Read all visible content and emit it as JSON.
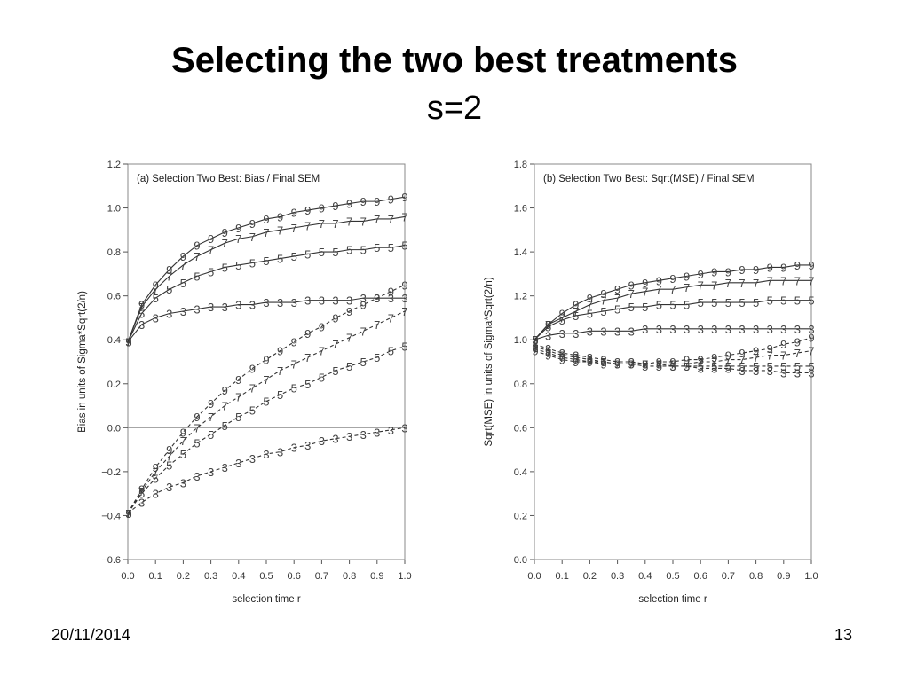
{
  "slide": {
    "title": "Selecting the two best treatments",
    "subtitle": "s=2",
    "date": "20/11/2014",
    "page_number": "13"
  },
  "chart_data": [
    {
      "type": "line",
      "title": "(a)  Selection  Two  Best:  Bias  /  Final  SEM",
      "xlabel": "selection  time  r",
      "ylabel": "Bias  in  units  of  Sigma*Sqrt(2/n)",
      "xlim": [
        0.0,
        1.0
      ],
      "ylim": [
        -0.6,
        1.2
      ],
      "xticks": [
        "0.0",
        "0.1",
        "0.2",
        "0.3",
        "0.4",
        "0.5",
        "0.6",
        "0.7",
        "0.8",
        "0.9",
        "1.0"
      ],
      "yticks": [
        "−0.6",
        "−0.4",
        "−0.2",
        "0.0",
        "0.2",
        "0.4",
        "0.6",
        "0.8",
        "1.0",
        "1.2"
      ],
      "ytick_values": [
        -0.6,
        -0.4,
        -0.2,
        0.0,
        0.2,
        0.4,
        0.6,
        0.8,
        1.0,
        1.2
      ],
      "reference_line_y": 0.0,
      "x": [
        0.0,
        0.05,
        0.1,
        0.15,
        0.2,
        0.25,
        0.3,
        0.35,
        0.4,
        0.45,
        0.5,
        0.55,
        0.6,
        0.65,
        0.7,
        0.75,
        0.8,
        0.85,
        0.9,
        0.95,
        1.0
      ],
      "series": [
        {
          "name": "9",
          "dash": false,
          "values": [
            0.39,
            0.56,
            0.65,
            0.72,
            0.78,
            0.83,
            0.86,
            0.89,
            0.91,
            0.93,
            0.95,
            0.96,
            0.98,
            0.99,
            1.0,
            1.01,
            1.02,
            1.03,
            1.03,
            1.04,
            1.05
          ]
        },
        {
          "name": "7",
          "dash": false,
          "values": [
            0.39,
            0.55,
            0.63,
            0.69,
            0.74,
            0.78,
            0.81,
            0.84,
            0.86,
            0.87,
            0.89,
            0.9,
            0.91,
            0.92,
            0.93,
            0.93,
            0.94,
            0.94,
            0.95,
            0.95,
            0.96
          ]
        },
        {
          "name": "5",
          "dash": false,
          "values": [
            0.39,
            0.52,
            0.59,
            0.63,
            0.66,
            0.69,
            0.71,
            0.73,
            0.74,
            0.75,
            0.76,
            0.77,
            0.78,
            0.79,
            0.8,
            0.8,
            0.81,
            0.81,
            0.82,
            0.82,
            0.83
          ]
        },
        {
          "name": "3",
          "dash": false,
          "values": [
            0.39,
            0.47,
            0.5,
            0.52,
            0.53,
            0.54,
            0.55,
            0.55,
            0.56,
            0.56,
            0.57,
            0.57,
            0.57,
            0.58,
            0.58,
            0.58,
            0.58,
            0.59,
            0.59,
            0.59,
            0.59
          ]
        },
        {
          "name": "9",
          "dash": true,
          "values": [
            -0.39,
            -0.28,
            -0.18,
            -0.1,
            -0.02,
            0.05,
            0.11,
            0.17,
            0.22,
            0.27,
            0.31,
            0.35,
            0.39,
            0.43,
            0.46,
            0.5,
            0.53,
            0.56,
            0.59,
            0.62,
            0.65
          ]
        },
        {
          "name": "7",
          "dash": true,
          "values": [
            -0.39,
            -0.29,
            -0.2,
            -0.13,
            -0.06,
            0.0,
            0.05,
            0.1,
            0.14,
            0.18,
            0.22,
            0.26,
            0.29,
            0.32,
            0.35,
            0.38,
            0.41,
            0.44,
            0.47,
            0.5,
            0.53
          ]
        },
        {
          "name": "5",
          "dash": true,
          "values": [
            -0.39,
            -0.3,
            -0.23,
            -0.17,
            -0.12,
            -0.07,
            -0.03,
            0.01,
            0.05,
            0.08,
            0.12,
            0.15,
            0.18,
            0.2,
            0.23,
            0.26,
            0.28,
            0.3,
            0.32,
            0.35,
            0.37
          ]
        },
        {
          "name": "3",
          "dash": true,
          "values": [
            -0.39,
            -0.34,
            -0.3,
            -0.27,
            -0.25,
            -0.22,
            -0.2,
            -0.18,
            -0.16,
            -0.14,
            -0.12,
            -0.11,
            -0.09,
            -0.08,
            -0.06,
            -0.05,
            -0.04,
            -0.03,
            -0.02,
            -0.01,
            0.0
          ]
        }
      ]
    },
    {
      "type": "line",
      "title": "(b)  Selection  Two  Best:  Sqrt(MSE)  /  Final  SEM",
      "xlabel": "selection  time  r",
      "ylabel": "Sqrt(MSE)  in  units  of  Sigma*Sqrt(2/n)",
      "xlim": [
        0.0,
        1.0
      ],
      "ylim": [
        0.0,
        1.8
      ],
      "xticks": [
        "0.0",
        "0.1",
        "0.2",
        "0.3",
        "0.4",
        "0.5",
        "0.6",
        "0.7",
        "0.8",
        "0.9",
        "1.0"
      ],
      "yticks": [
        "0.0",
        "0.2",
        "0.4",
        "0.6",
        "0.8",
        "1.0",
        "1.2",
        "1.4",
        "1.6",
        "1.8"
      ],
      "ytick_values": [
        0.0,
        0.2,
        0.4,
        0.6,
        0.8,
        1.0,
        1.2,
        1.4,
        1.6,
        1.8
      ],
      "x": [
        0.0,
        0.05,
        0.1,
        0.15,
        0.2,
        0.25,
        0.3,
        0.35,
        0.4,
        0.45,
        0.5,
        0.55,
        0.6,
        0.65,
        0.7,
        0.75,
        0.8,
        0.85,
        0.9,
        0.95,
        1.0
      ],
      "series": [
        {
          "name": "9",
          "dash": false,
          "values": [
            1.0,
            1.07,
            1.12,
            1.16,
            1.19,
            1.21,
            1.23,
            1.25,
            1.26,
            1.27,
            1.28,
            1.29,
            1.3,
            1.31,
            1.31,
            1.32,
            1.32,
            1.33,
            1.33,
            1.34,
            1.34
          ]
        },
        {
          "name": "7",
          "dash": false,
          "values": [
            1.0,
            1.07,
            1.1,
            1.13,
            1.16,
            1.18,
            1.19,
            1.21,
            1.22,
            1.23,
            1.23,
            1.24,
            1.25,
            1.25,
            1.26,
            1.26,
            1.26,
            1.27,
            1.27,
            1.27,
            1.27
          ]
        },
        {
          "name": "5",
          "dash": false,
          "values": [
            1.0,
            1.06,
            1.09,
            1.11,
            1.12,
            1.13,
            1.14,
            1.15,
            1.15,
            1.16,
            1.16,
            1.16,
            1.17,
            1.17,
            1.17,
            1.17,
            1.17,
            1.18,
            1.18,
            1.18,
            1.18
          ]
        },
        {
          "name": "3",
          "dash": false,
          "values": [
            1.0,
            1.02,
            1.03,
            1.03,
            1.04,
            1.04,
            1.04,
            1.04,
            1.05,
            1.05,
            1.05,
            1.05,
            1.05,
            1.05,
            1.05,
            1.05,
            1.05,
            1.05,
            1.05,
            1.05,
            1.05
          ]
        },
        {
          "name": "9",
          "dash": true,
          "values": [
            0.95,
            0.93,
            0.91,
            0.9,
            0.9,
            0.89,
            0.89,
            0.89,
            0.89,
            0.9,
            0.9,
            0.91,
            0.91,
            0.92,
            0.93,
            0.94,
            0.95,
            0.96,
            0.98,
            0.99,
            1.01
          ]
        },
        {
          "name": "7",
          "dash": true,
          "values": [
            0.96,
            0.94,
            0.92,
            0.91,
            0.9,
            0.9,
            0.89,
            0.89,
            0.89,
            0.89,
            0.89,
            0.89,
            0.9,
            0.9,
            0.91,
            0.91,
            0.92,
            0.93,
            0.93,
            0.94,
            0.95
          ]
        },
        {
          "name": "5",
          "dash": true,
          "values": [
            0.97,
            0.95,
            0.93,
            0.92,
            0.91,
            0.9,
            0.89,
            0.89,
            0.88,
            0.88,
            0.88,
            0.88,
            0.88,
            0.88,
            0.88,
            0.88,
            0.88,
            0.88,
            0.88,
            0.88,
            0.88
          ]
        },
        {
          "name": "3",
          "dash": true,
          "values": [
            0.98,
            0.96,
            0.94,
            0.93,
            0.92,
            0.91,
            0.9,
            0.9,
            0.89,
            0.89,
            0.88,
            0.88,
            0.87,
            0.87,
            0.87,
            0.86,
            0.86,
            0.86,
            0.85,
            0.85,
            0.85
          ]
        }
      ]
    }
  ]
}
